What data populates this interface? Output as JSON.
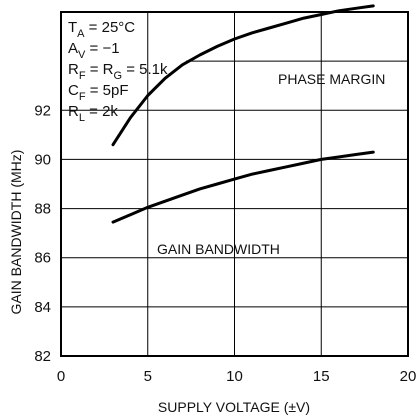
{
  "chart_data": {
    "type": "line",
    "xlabel": "SUPPLY VOLTAGE (±V)",
    "ylabel": "GAIN BANDWIDTH (MHz)",
    "xlim": [
      0,
      20
    ],
    "ylim": [
      82,
      96
    ],
    "x_ticks": [
      "0",
      "5",
      "10",
      "15",
      "20"
    ],
    "y_ticks": [
      "82",
      "84",
      "86",
      "88",
      "90",
      "92"
    ],
    "grid": true,
    "conditions": [
      {
        "main": "T",
        "sub": "A",
        "rest": " = 25°C"
      },
      {
        "main": "A",
        "sub": "V",
        "rest": " = −1"
      },
      {
        "main": "R",
        "sub": "F",
        "mid": " = R",
        "sub2": "G",
        "rest": " = 5.1k"
      },
      {
        "main": "C",
        "sub": "F",
        "rest": " = 5pF"
      },
      {
        "main": "R",
        "sub": "L",
        "rest": " = 2k"
      }
    ],
    "series": [
      {
        "name": "PHASE MARGIN",
        "x": [
          3,
          4,
          5,
          6,
          7,
          8,
          9,
          10,
          11,
          12,
          13,
          14,
          15,
          16,
          17,
          18
        ],
        "y": [
          90.6,
          91.7,
          92.6,
          93.3,
          93.85,
          94.25,
          94.6,
          94.9,
          95.15,
          95.35,
          95.55,
          95.75,
          95.9,
          96.05,
          96.15,
          96.25
        ]
      },
      {
        "name": "GAIN BANDWIDTH",
        "x": [
          3,
          4,
          5,
          6,
          7,
          8,
          9,
          10,
          11,
          12,
          13,
          14,
          15,
          16,
          17,
          18
        ],
        "y": [
          87.45,
          87.75,
          88.05,
          88.3,
          88.55,
          88.8,
          89.0,
          89.2,
          89.4,
          89.55,
          89.7,
          89.85,
          90.0,
          90.1,
          90.2,
          90.3
        ]
      }
    ]
  }
}
